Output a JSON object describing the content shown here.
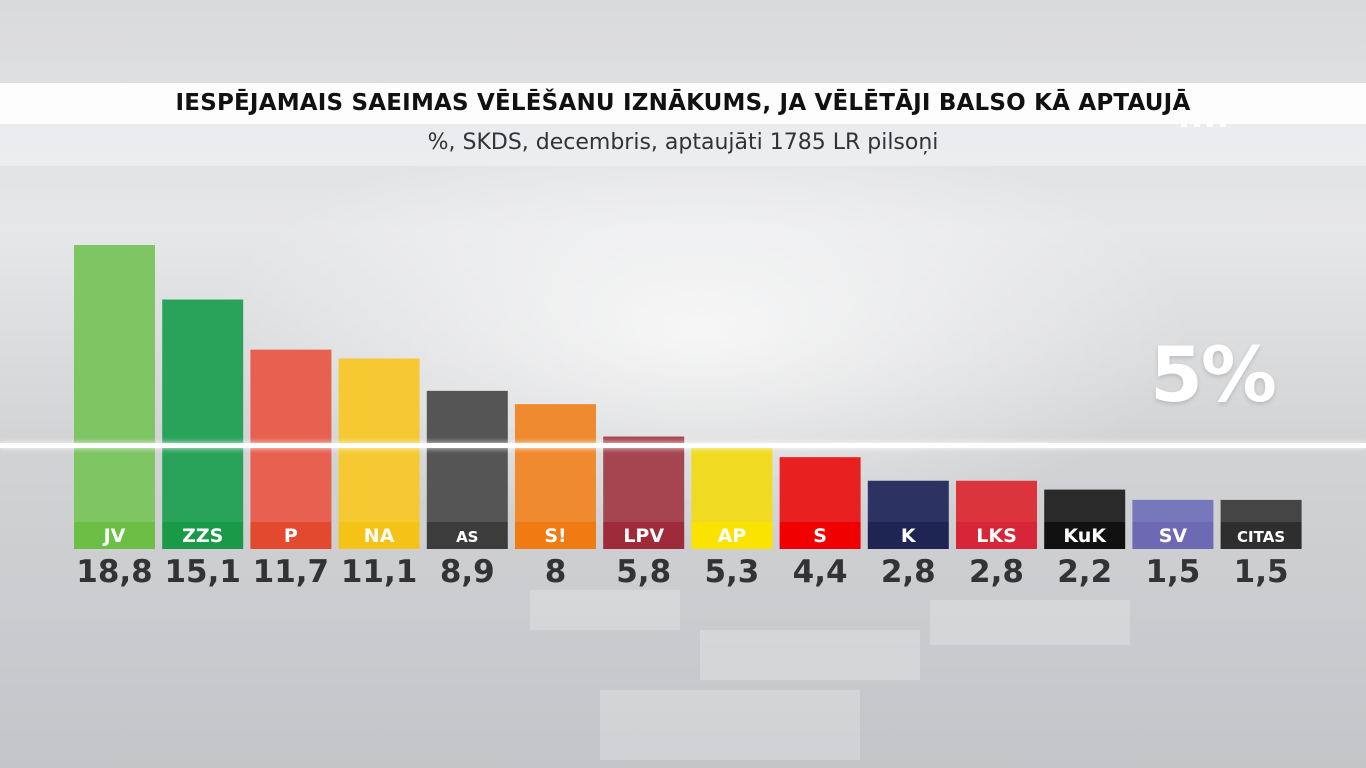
{
  "title": "IESPĒJAMAIS SAEIMAS VĒLĒŠANU IZNĀKUMS, JA VĒLĒTĀJI BALSO KĀ APTAUJĀ",
  "subtitle": "%, SKDS, decembris, aptaujāti 1785 LR pilsoņi",
  "threshold_label": "5%",
  "chart_data": {
    "type": "bar",
    "title": "IESPĒJAMAIS SAEIMAS VĒLĒŠANU IZNĀKUMS, JA VĒLĒTĀJI BALSO KĀ APTAUJĀ",
    "subtitle": "%, SKDS, decembris, aptaujāti 1785 LR pilsoņi",
    "categories": [
      "JV",
      "ZZS",
      "P",
      "NA",
      "AS",
      "S!",
      "LPV",
      "AP",
      "S",
      "K",
      "LKS",
      "KuK",
      "SV",
      "CITAS"
    ],
    "values": [
      18.8,
      15.1,
      11.7,
      11.1,
      8.9,
      8,
      5.8,
      5.3,
      4.4,
      2.8,
      2.8,
      2.2,
      1.5,
      1.5
    ],
    "value_labels": [
      "18,8",
      "15,1",
      "11,7",
      "11,1",
      "8,9",
      "8",
      "5,8",
      "5,3",
      "4,4",
      "2,8",
      "2,8",
      "2,2",
      "1,5",
      "1,5"
    ],
    "colors": [
      "#7ec564",
      "#2aa35a",
      "#e8604f",
      "#f6c933",
      "#555555",
      "#f08a2e",
      "#a5454f",
      "#f0db22",
      "#e82020",
      "#2c3262",
      "#db343d",
      "#2a2a2a",
      "#7777bb",
      "#454545"
    ],
    "label_colors": [
      "#6cbf45",
      "#1a9a47",
      "#e2492f",
      "#f5c318",
      "#3c3c3c",
      "#f07b12",
      "#9e2a3a",
      "#fbe300",
      "#f00000",
      "#1f2552",
      "#d72638",
      "#111111",
      "#6e69b3",
      "#2e2e2e"
    ],
    "reference_line": {
      "value": 5,
      "label": "5%"
    },
    "ylim": [
      0,
      18.8
    ],
    "grid": false,
    "legend": "none"
  }
}
